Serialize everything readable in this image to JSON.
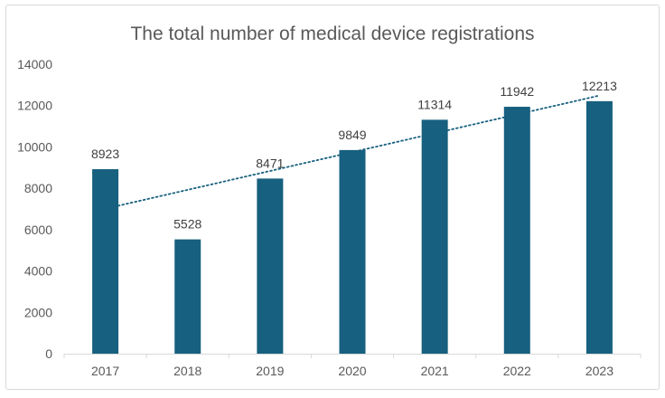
{
  "chart_data": {
    "type": "bar",
    "title": "The total number of medical device registrations",
    "categories": [
      "2017",
      "2018",
      "2019",
      "2020",
      "2021",
      "2022",
      "2023"
    ],
    "values": [
      8923,
      5528,
      8471,
      9849,
      11314,
      11942,
      12213
    ],
    "data_labels": [
      "8923",
      "5528",
      "8471",
      "9849",
      "11314",
      "11942",
      "12213"
    ],
    "ylim": [
      0,
      14000
    ],
    "yticks": [
      "0",
      "2000",
      "4000",
      "6000",
      "8000",
      "10000",
      "12000",
      "14000"
    ],
    "xlabel": "",
    "ylabel": "",
    "grid": false,
    "legend": "none",
    "trendline": "linear, dotted",
    "colors": {
      "bar": "#17607f",
      "trendline": "#17607f",
      "text": "#595959",
      "axis": "#d9d9d9"
    }
  }
}
